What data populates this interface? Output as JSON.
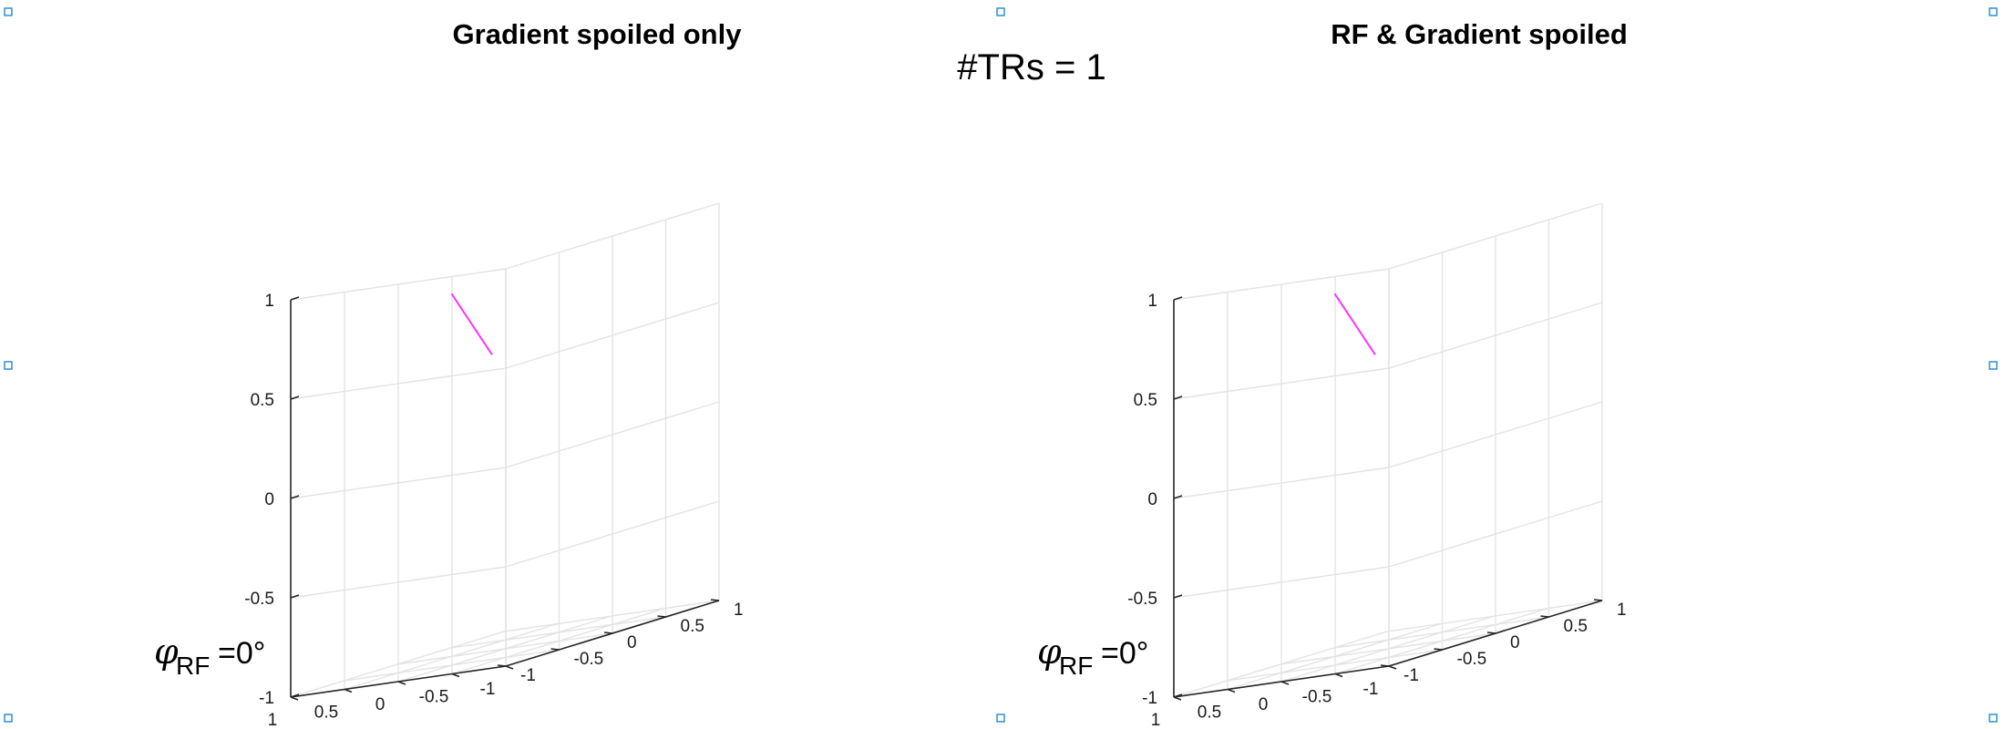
{
  "suptitle": "#TRs = 1",
  "chart_data": [
    {
      "type": "line",
      "title": "Gradient spoiled only",
      "projection": "3d",
      "xlim": [
        -1,
        1
      ],
      "ylim": [
        -1,
        1
      ],
      "zlim": [
        -1,
        1
      ],
      "x_ticks": [
        "-1",
        "-0.5",
        "0",
        "0.5",
        "1"
      ],
      "y_ticks": [
        "-1",
        "-0.5",
        "0",
        "0.5",
        "1"
      ],
      "z_ticks": [
        "-1",
        "-0.5",
        "0",
        "0.5",
        "1"
      ],
      "grid": true,
      "series": [
        {
          "color": "#ff33ff",
          "x": [
            0,
            0
          ],
          "y": [
            -0.5,
            -0.12
          ],
          "z": [
            0.87,
            0.5
          ]
        }
      ],
      "annotation": {
        "symbol": "φ",
        "subscript": "RF",
        "value": "=0°"
      }
    },
    {
      "type": "line",
      "title": "RF & Gradient spoiled",
      "projection": "3d",
      "xlim": [
        -1,
        1
      ],
      "ylim": [
        -1,
        1
      ],
      "zlim": [
        -1,
        1
      ],
      "x_ticks": [
        "-1",
        "-0.5",
        "0",
        "0.5",
        "1"
      ],
      "y_ticks": [
        "-1",
        "-0.5",
        "0",
        "0.5",
        "1"
      ],
      "z_ticks": [
        "-1",
        "-0.5",
        "0",
        "0.5",
        "1"
      ],
      "grid": true,
      "series": [
        {
          "color": "#ff33ff",
          "x": [
            0,
            0
          ],
          "y": [
            -0.5,
            -0.12
          ],
          "z": [
            0.87,
            0.5
          ]
        }
      ],
      "annotation": {
        "symbol": "φ",
        "subscript": "RF",
        "value": "=0°"
      }
    }
  ]
}
